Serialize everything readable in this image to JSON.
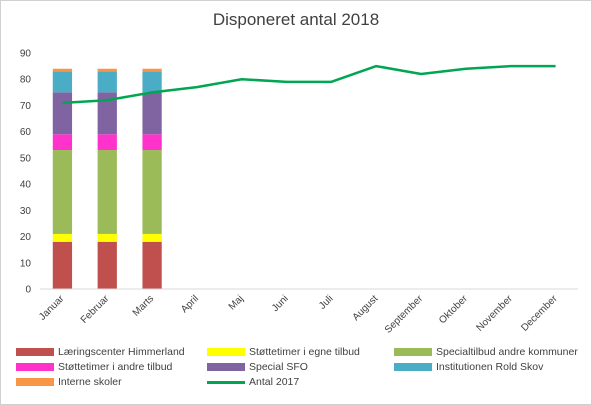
{
  "chart_data": {
    "type": "bar",
    "title": "Disponeret antal 2018",
    "categories": [
      "Januar",
      "Februar",
      "Marts",
      "April",
      "Maj",
      "Juni",
      "Juli",
      "August",
      "September",
      "Oktober",
      "November",
      "December"
    ],
    "ylim": [
      0,
      90
    ],
    "yticks": [
      0,
      10,
      20,
      30,
      40,
      50,
      60,
      70,
      80,
      90
    ],
    "grid": false,
    "legend_position": "bottom",
    "stacked_series": [
      {
        "name": "Læringscenter Himmerland",
        "color": "#c0504d",
        "values": [
          18,
          18,
          18,
          null,
          null,
          null,
          null,
          null,
          null,
          null,
          null,
          null
        ]
      },
      {
        "name": "Støttetimer i egne tilbud",
        "color": "#ffff00",
        "values": [
          3,
          3,
          3,
          null,
          null,
          null,
          null,
          null,
          null,
          null,
          null,
          null
        ]
      },
      {
        "name": "Specialtilbud andre kommuner",
        "color": "#9bbb59",
        "values": [
          32,
          32,
          32,
          null,
          null,
          null,
          null,
          null,
          null,
          null,
          null,
          null
        ]
      },
      {
        "name": "Støttetimer i andre tilbud",
        "color": "#ff33cc",
        "values": [
          6,
          6,
          6,
          null,
          null,
          null,
          null,
          null,
          null,
          null,
          null,
          null
        ]
      },
      {
        "name": "Special SFO",
        "color": "#8064a2",
        "values": [
          16,
          16,
          16,
          null,
          null,
          null,
          null,
          null,
          null,
          null,
          null,
          null
        ]
      },
      {
        "name": "Institutionen Rold Skov",
        "color": "#4bacc6",
        "values": [
          8,
          8,
          8,
          null,
          null,
          null,
          null,
          null,
          null,
          null,
          null,
          null
        ]
      },
      {
        "name": "Interne skoler",
        "color": "#f79646",
        "values": [
          1,
          1,
          1,
          null,
          null,
          null,
          null,
          null,
          null,
          null,
          null,
          null
        ]
      }
    ],
    "line_series": [
      {
        "name": "Antal 2017",
        "color": "#00a651",
        "values": [
          71,
          72,
          75,
          77,
          80,
          79,
          79,
          85,
          82,
          84,
          85,
          85
        ]
      }
    ]
  }
}
